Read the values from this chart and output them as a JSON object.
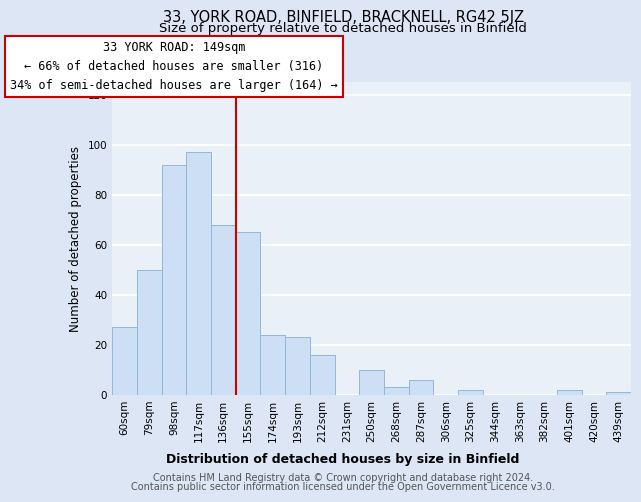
{
  "title": "33, YORK ROAD, BINFIELD, BRACKNELL, RG42 5JZ",
  "subtitle": "Size of property relative to detached houses in Binfield",
  "xlabel": "Distribution of detached houses by size in Binfield",
  "ylabel": "Number of detached properties",
  "categories": [
    "60sqm",
    "79sqm",
    "98sqm",
    "117sqm",
    "136sqm",
    "155sqm",
    "174sqm",
    "193sqm",
    "212sqm",
    "231sqm",
    "250sqm",
    "268sqm",
    "287sqm",
    "306sqm",
    "325sqm",
    "344sqm",
    "363sqm",
    "382sqm",
    "401sqm",
    "420sqm",
    "439sqm"
  ],
  "values": [
    27,
    50,
    92,
    97,
    68,
    65,
    24,
    23,
    16,
    0,
    10,
    3,
    6,
    0,
    2,
    0,
    0,
    0,
    2,
    0,
    1
  ],
  "bar_color": "#ccdff5",
  "bar_edge_color": "#92b8d8",
  "vline_x": 4.5,
  "vline_color": "#cc0000",
  "annotation_text": "33 YORK ROAD: 149sqm\n← 66% of detached houses are smaller (316)\n34% of semi-detached houses are larger (164) →",
  "annotation_box_color": "#ffffff",
  "annotation_box_edge_color": "#cc0000",
  "ylim": [
    0,
    125
  ],
  "yticks": [
    0,
    20,
    40,
    60,
    80,
    100,
    120
  ],
  "footer_line1": "Contains HM Land Registry data © Crown copyright and database right 2024.",
  "footer_line2": "Contains public sector information licensed under the Open Government Licence v3.0.",
  "bg_color": "#dce6f5",
  "plot_bg_color": "#eaf0f8",
  "grid_color": "#ffffff",
  "title_fontsize": 10.5,
  "subtitle_fontsize": 9.5,
  "xlabel_fontsize": 9,
  "ylabel_fontsize": 8.5,
  "tick_fontsize": 7.5,
  "footer_fontsize": 7,
  "annotation_fontsize": 8.5,
  "xlabel_fontweight": "bold"
}
